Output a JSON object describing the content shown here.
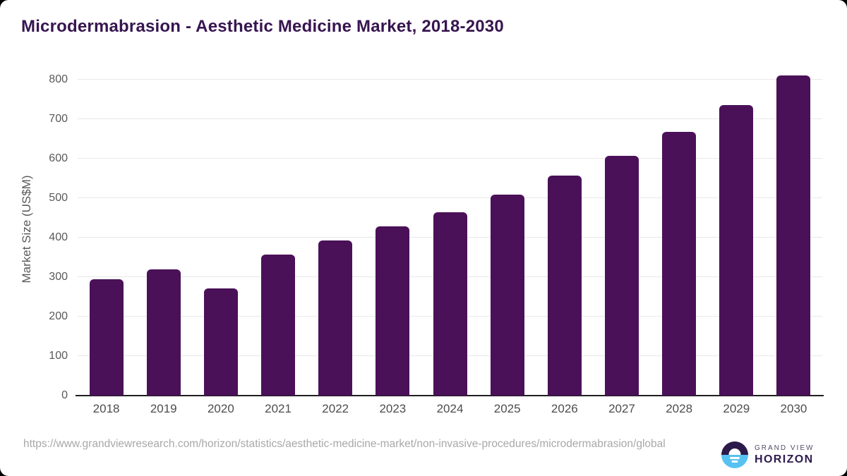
{
  "header": {
    "title": "Microdermabrasion - Aesthetic Medicine Market, 2018-2030"
  },
  "chart_data": {
    "type": "bar",
    "title": "Microdermabrasion - Aesthetic Medicine Market, 2018-2030",
    "categories": [
      "2018",
      "2019",
      "2020",
      "2021",
      "2022",
      "2023",
      "2024",
      "2025",
      "2026",
      "2027",
      "2028",
      "2029",
      "2030"
    ],
    "values": [
      295,
      320,
      272,
      357,
      393,
      428,
      465,
      509,
      557,
      608,
      667,
      735,
      810
    ],
    "xlabel": "",
    "ylabel": "Market Size (US$M)",
    "ylim": [
      0,
      800
    ],
    "ytick_interval": 100,
    "grid": true,
    "legend": "none",
    "bar_color": "#4a1158",
    "gridline_color": "#e8e8e8",
    "axis_color": "#1f1f1f",
    "tick_label_color": "#595959",
    "title_color": "#371550"
  },
  "footer": {
    "source_url": "https://www.grandviewresearch.com/horizon/statistics/aesthetic-medicine-market/non-invasive-procedures/microdermabrasion/global",
    "logo": {
      "line1": "GRAND VIEW",
      "line2": "HORIZON",
      "mark_top_color": "#2b1a4a",
      "mark_bottom_color": "#57c2f1"
    }
  }
}
